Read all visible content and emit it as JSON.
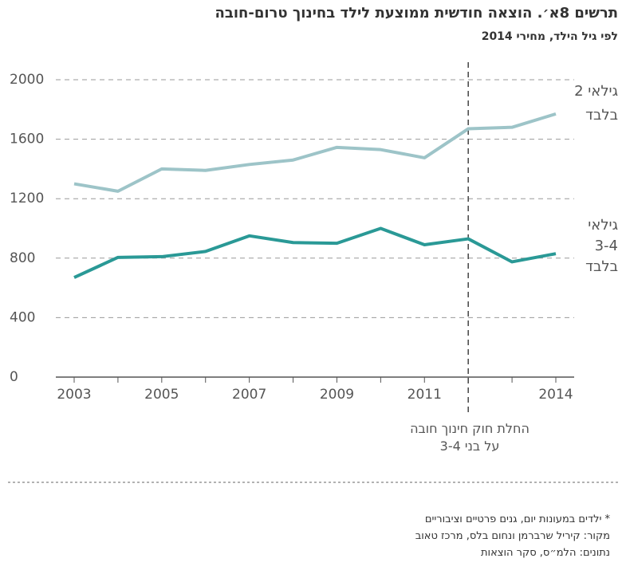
{
  "chart_data": {
    "type": "line",
    "title": "תרשים 8א׳. הוצאה חודשית ממוצעת לילד בחינוך טרום-חובה",
    "subtitle": "לפי גיל הילד, מחירי 2014",
    "x": [
      2003,
      2004,
      2005,
      2006,
      2007,
      2008,
      2009,
      2010,
      2011,
      2012,
      2013,
      2014
    ],
    "xlim": [
      2003,
      2014
    ],
    "xticks": [
      2003,
      2005,
      2007,
      2009,
      2011,
      2014
    ],
    "ylim": [
      0,
      2000
    ],
    "yticks": [
      0,
      400,
      800,
      1200,
      1600,
      2000
    ],
    "grid": true,
    "series": [
      {
        "name": "גילאי 2\nבלבד",
        "color": "#9dc4c8",
        "values": [
          1300,
          1250,
          1400,
          1390,
          1430,
          1460,
          1545,
          1530,
          1475,
          1670,
          1680,
          1770
        ]
      },
      {
        "name": "גילאי\n3-4\nבלבד",
        "color": "#2a9996",
        "values": [
          670,
          805,
          810,
          845,
          950,
          905,
          900,
          1000,
          890,
          930,
          775,
          830
        ]
      }
    ],
    "vline": {
      "x": 2012,
      "label": "החלת חוק חינוך חובה\nעל בני 3-4"
    },
    "notes": [
      "* ילדים במעונות יום, גנים פרטיים וציבוריים",
      "מקור: קיריל שרברמן ונחום בלס, מרכז טאוב",
      "נתונים: הלמ״ס, סקר הוצאות"
    ]
  }
}
